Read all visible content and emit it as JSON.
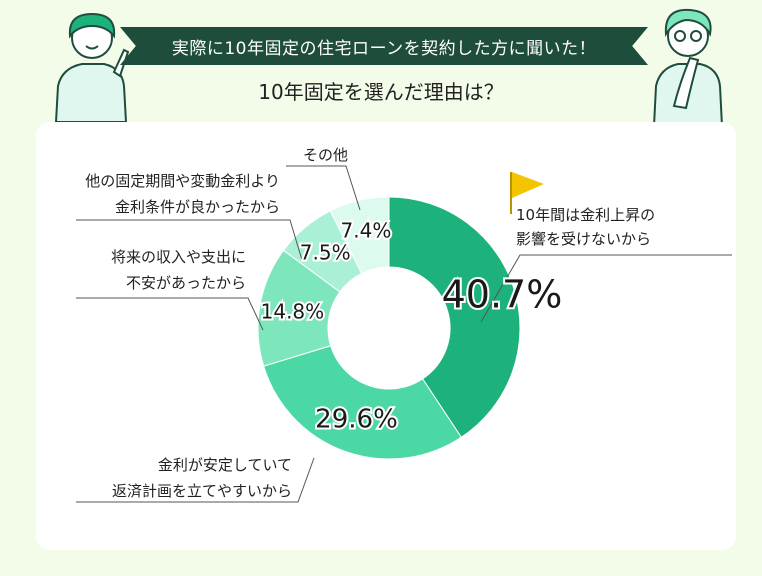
{
  "header": {
    "banner": "実際に10年固定の住宅ローンを契約した方に聞いた！",
    "question": "10年固定を選んだ理由は？"
  },
  "colors": {
    "banner_bg": "#1f4d3c",
    "page_bg": "#f3fbe9",
    "seg1": "#1db27c",
    "seg2": "#4cd8a4",
    "seg3": "#7ee6bd",
    "seg4": "#aaf0d6",
    "seg5": "#dcfbee",
    "flag": "#f2c500"
  },
  "chart_data": {
    "type": "donut",
    "categories": [
      "10年間は金利上昇の影響を受けないから",
      "金利が安定していて返済計画を立てやすいから",
      "将来の収入や支出に不安があったから",
      "他の固定期間や変動金利より金利条件が良かったから",
      "その他"
    ],
    "values": [
      40.7,
      29.6,
      14.8,
      7.5,
      7.4
    ],
    "unit": "%",
    "value_labels": [
      "40.7%",
      "29.6%",
      "14.8%",
      "7.5%",
      "7.4%"
    ],
    "label_lines": [
      [
        "10年間は金利上昇の",
        "影響を受けないから"
      ],
      [
        "金利が安定していて",
        "返済計画を立てやすいから"
      ],
      [
        "将来の収入や支出に",
        "不安があったから"
      ],
      [
        "他の固定期間や変動金利より",
        "金利条件が良かったから"
      ],
      [
        "その他"
      ]
    ]
  }
}
